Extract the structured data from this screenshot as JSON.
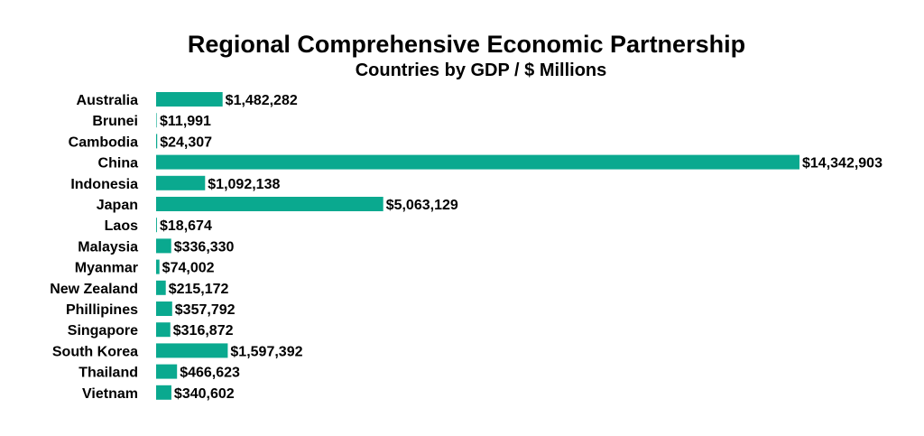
{
  "chart_data": {
    "type": "bar",
    "orientation": "horizontal",
    "title": "Regional Comprehensive Economic Partnership",
    "subtitle": "Countries by GDP / $ Millions",
    "xlabel": "",
    "ylabel": "",
    "grid": false,
    "bar_color": "#0aa98f",
    "xlim": [
      0,
      14342903
    ],
    "categories": [
      "Australia",
      "Brunei",
      "Cambodia",
      "China",
      "Indonesia",
      "Japan",
      "Laos",
      "Malaysia",
      "Myanmar",
      "New Zealand",
      "Phillipines",
      "Singapore",
      "South Korea",
      "Thailand",
      "Vietnam"
    ],
    "values": [
      1482282,
      11991,
      24307,
      14342903,
      1092138,
      5063129,
      18674,
      336330,
      74002,
      215172,
      357792,
      316872,
      1597392,
      466623,
      340602
    ],
    "value_labels": [
      "$1,482,282",
      "$11,991",
      "$24,307",
      "$14,342,903",
      "$1,092,138",
      "$5,063,129",
      "$18,674",
      "$336,330",
      "$74,002",
      "$215,172",
      "$357,792",
      "$316,872",
      "$1,597,392",
      "$466,623",
      "$340,602"
    ]
  }
}
